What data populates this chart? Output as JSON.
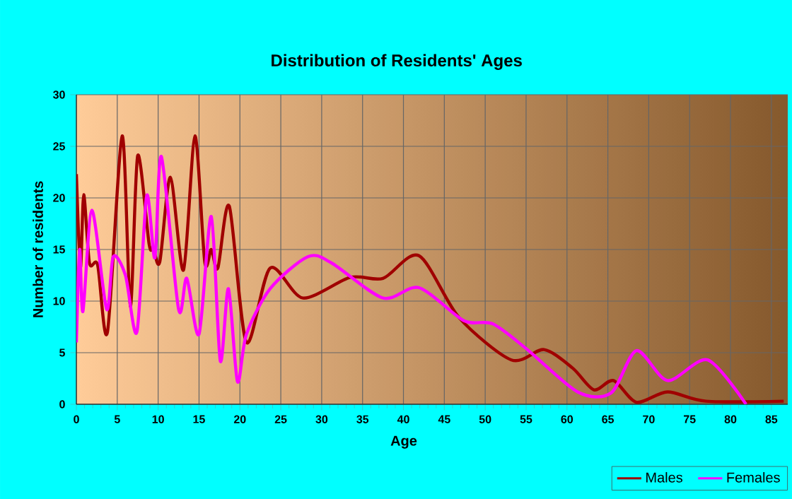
{
  "chart_data": {
    "type": "line",
    "title": "Distribution of Residents' Ages",
    "xlabel": "Age",
    "ylabel": "Number of residents",
    "xlim": [
      0,
      87
    ],
    "ylim": [
      0,
      30
    ],
    "xticks": [
      0,
      5,
      10,
      15,
      20,
      25,
      30,
      35,
      40,
      45,
      50,
      55,
      60,
      65,
      70,
      75,
      80,
      85
    ],
    "yticks": [
      0,
      5,
      10,
      15,
      20,
      25,
      30
    ],
    "grid": true,
    "legend": "bottom right",
    "marker": "none",
    "line_style": "solid",
    "series": [
      {
        "name": "Males",
        "color": "#a00000",
        "x": [
          0,
          0.5,
          0.9,
          1.6,
          2.6,
          3.8,
          5.6,
          6.6,
          7.5,
          8.9,
          9.4,
          10.2,
          11.5,
          13.1,
          14.5,
          15.7,
          16.5,
          17.3,
          18.7,
          20.8,
          23.7,
          27.7,
          33.5,
          37.5,
          41.9,
          46.8,
          53.2,
          57.2,
          60.7,
          63.3,
          65.7,
          68.5,
          72.3,
          77,
          86.5
        ],
        "values": [
          22.3,
          13.3,
          20.3,
          13.7,
          13.5,
          7,
          26,
          9.5,
          24.1,
          15.5,
          15.2,
          13.8,
          22,
          13,
          26,
          13.8,
          15,
          13.2,
          19.2,
          6,
          13.2,
          10.3,
          12.3,
          12.2,
          14.4,
          8.4,
          4.3,
          5.3,
          3.5,
          1.4,
          2.3,
          0.2,
          1.2,
          0.3,
          0.3
        ]
      },
      {
        "name": "Females",
        "color": "#ff00ff",
        "x": [
          0,
          0.4,
          0.8,
          1.9,
          3.7,
          4.5,
          6.0,
          7.4,
          8.6,
          9.6,
          10.4,
          12.5,
          13.5,
          15.0,
          16.5,
          17.6,
          18.6,
          19.7,
          20.8,
          23.7,
          28.3,
          31.2,
          37.5,
          41.9,
          47.4,
          50.9,
          55,
          61.3,
          65.4,
          68.5,
          72.3,
          77.2,
          81.9
        ],
        "values": [
          6,
          15,
          9,
          18.8,
          9.2,
          14.3,
          12.5,
          7,
          20.2,
          14.2,
          24,
          9.2,
          12.2,
          6.8,
          18.2,
          4.2,
          11.2,
          2.2,
          6.8,
          11.2,
          14.3,
          13.7,
          10.3,
          11.3,
          8.1,
          7.8,
          5.4,
          1.2,
          1.1,
          5.2,
          2.3,
          4.3,
          0
        ]
      }
    ]
  }
}
